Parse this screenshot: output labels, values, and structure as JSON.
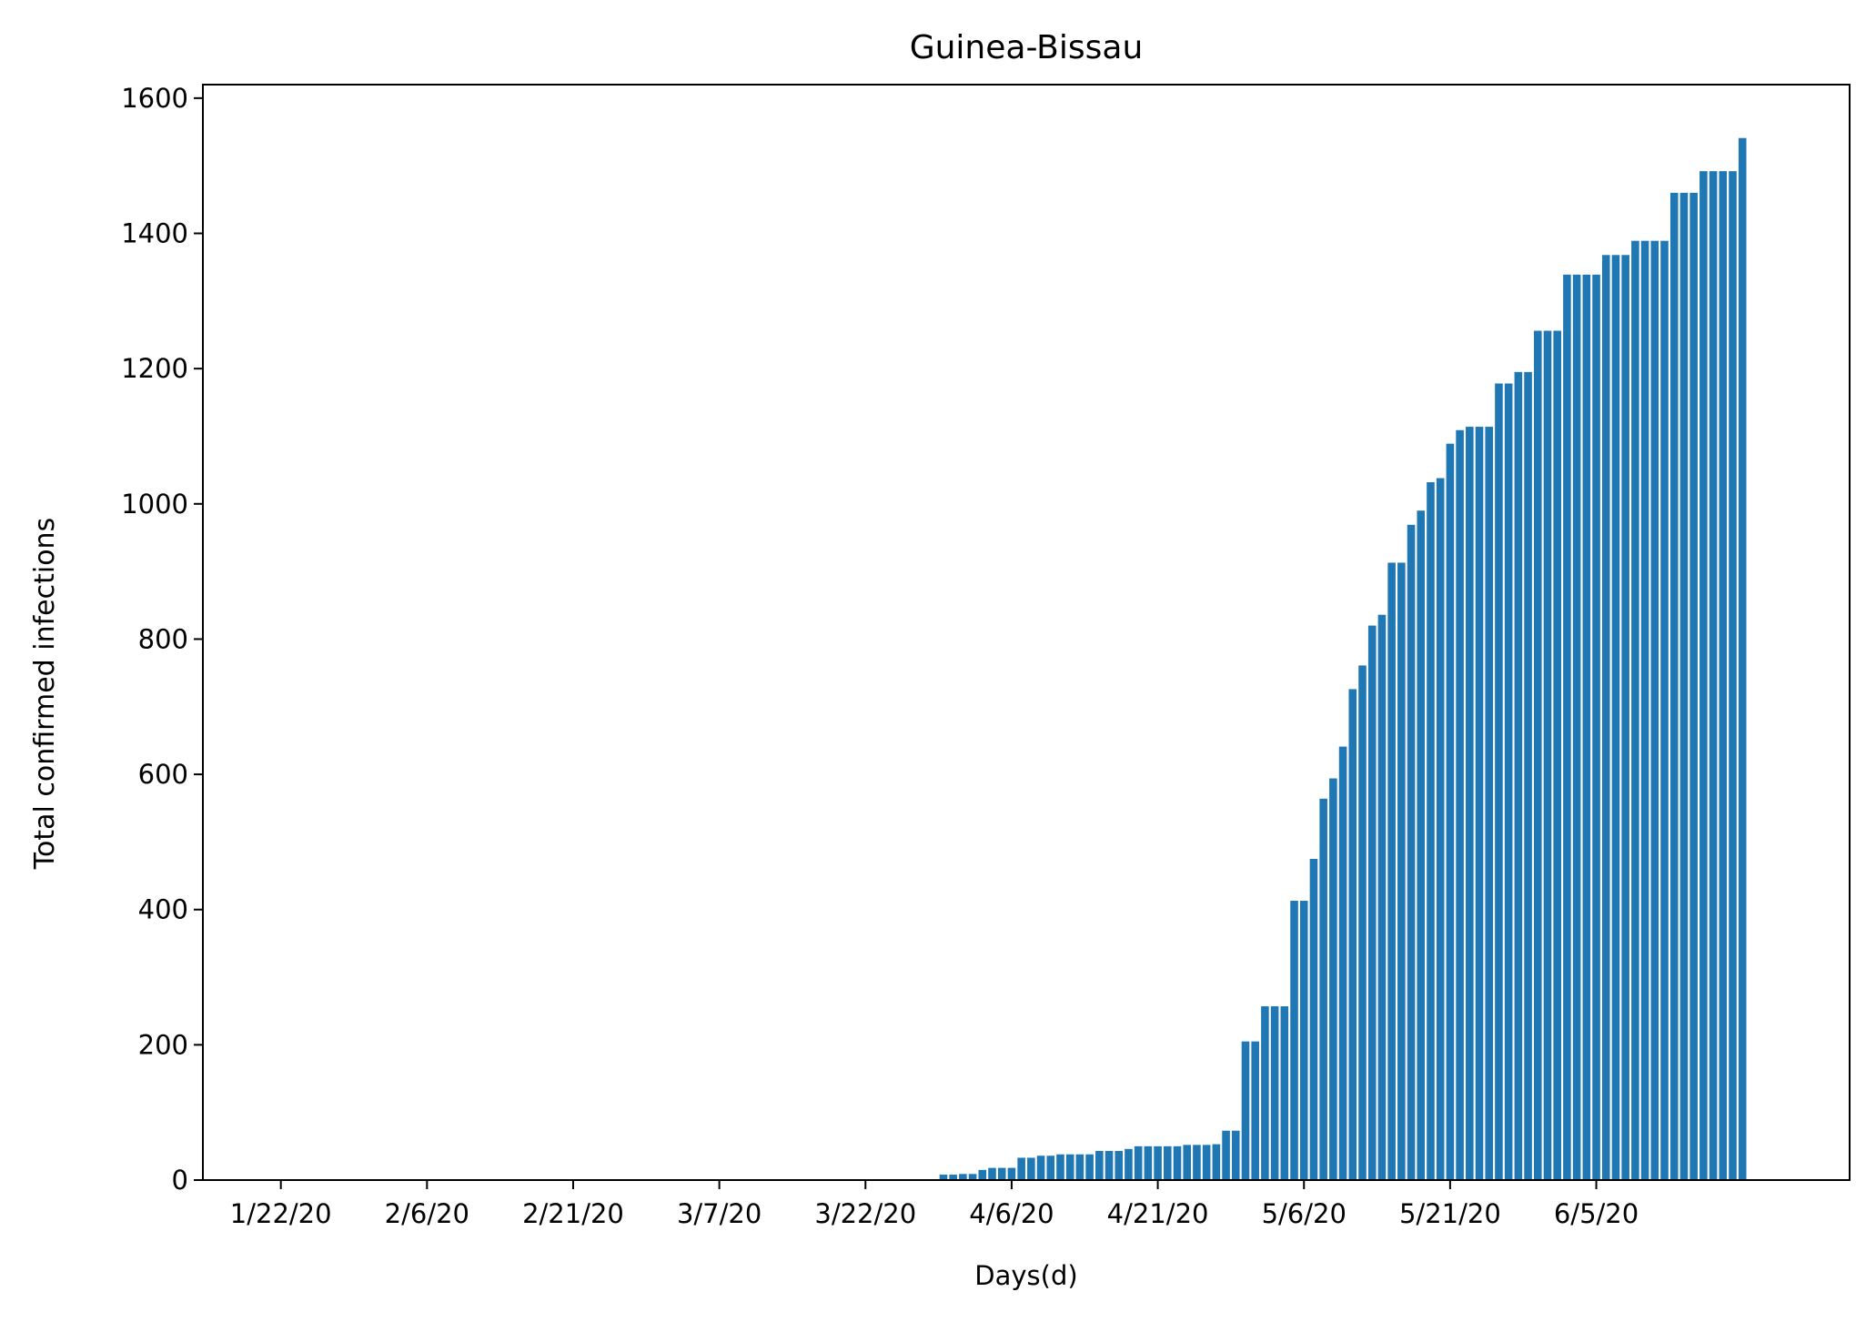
{
  "chart_data": {
    "type": "bar",
    "title": "Guinea-Bissau",
    "xlabel": "Days(d)",
    "ylabel": "Total confirmed infections",
    "ylim": [
      0,
      1620
    ],
    "xlim": [
      -8,
      161
    ],
    "yticks": [
      0,
      200,
      400,
      600,
      800,
      1000,
      1200,
      1400,
      1600
    ],
    "ytick_labels": [
      "0",
      "200",
      "400",
      "600",
      "800",
      "1000",
      "1200",
      "1400",
      "1600"
    ],
    "xtick_positions": [
      0,
      15,
      30,
      45,
      60,
      75,
      90,
      105,
      120,
      135
    ],
    "xtick_labels": [
      "1/22/20",
      "2/6/20",
      "2/21/20",
      "3/7/20",
      "3/22/20",
      "4/6/20",
      "4/21/20",
      "5/6/20",
      "5/21/20",
      "6/5/20"
    ],
    "bar_color": "#1f77b4",
    "grid": false,
    "series": [
      {
        "name": "Total confirmed infections",
        "start_date": "1/22/20",
        "values": [
          0,
          0,
          0,
          0,
          0,
          0,
          0,
          0,
          0,
          0,
          0,
          0,
          0,
          0,
          0,
          0,
          0,
          0,
          0,
          0,
          0,
          0,
          0,
          0,
          0,
          0,
          0,
          0,
          0,
          0,
          0,
          0,
          0,
          0,
          0,
          0,
          0,
          0,
          0,
          0,
          0,
          0,
          0,
          0,
          0,
          0,
          0,
          0,
          0,
          0,
          0,
          0,
          0,
          0,
          0,
          0,
          0,
          0,
          0,
          0,
          0,
          0,
          0,
          0,
          0,
          0,
          0,
          0,
          8,
          8,
          9,
          9,
          15,
          18,
          18,
          18,
          33,
          33,
          36,
          36,
          38,
          38,
          38,
          38,
          43,
          43,
          43,
          46,
          50,
          50,
          50,
          50,
          50,
          52,
          52,
          52,
          53,
          73,
          73,
          205,
          205,
          257,
          257,
          257,
          413,
          413,
          475,
          564,
          594,
          641,
          726,
          761,
          820,
          836,
          913,
          913,
          969,
          990,
          1032,
          1038,
          1089,
          1109,
          1114,
          1114,
          1114,
          1178,
          1178,
          1195,
          1195,
          1256,
          1256,
          1256,
          1339,
          1339,
          1339,
          1339,
          1368,
          1368,
          1368,
          1389,
          1389,
          1389,
          1389,
          1460,
          1460,
          1460,
          1492,
          1492,
          1492,
          1492,
          1541
        ]
      }
    ]
  }
}
